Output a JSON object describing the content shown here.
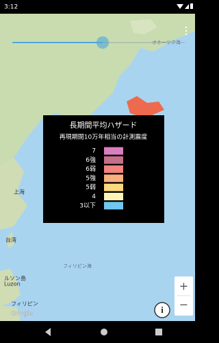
{
  "status_bar": {
    "time": "3:12"
  },
  "map": {
    "labels": [
      "オホーツク海",
      "上海",
      "台湾",
      "フィリピン海",
      "ルソン島",
      "Luzon",
      "フィリピン",
      "Google"
    ]
  },
  "legend": {
    "title": "長期間平均ハザード",
    "subtitle": "再現期間10万年相当の計測震度",
    "items": [
      {
        "label": "7",
        "color": "#d87fc0"
      },
      {
        "label": "6強",
        "color": "#c4708a"
      },
      {
        "label": "6弱",
        "color": "#f2837e"
      },
      {
        "label": "5強",
        "color": "#f7b07e"
      },
      {
        "label": "5弱",
        "color": "#fad87f"
      },
      {
        "label": "4",
        "color": "#fdf4b6"
      },
      {
        "label": "3以下",
        "color": "#70c8f2"
      }
    ]
  },
  "controls": {
    "zoom_in": "+",
    "zoom_out": "−",
    "info": "i"
  }
}
